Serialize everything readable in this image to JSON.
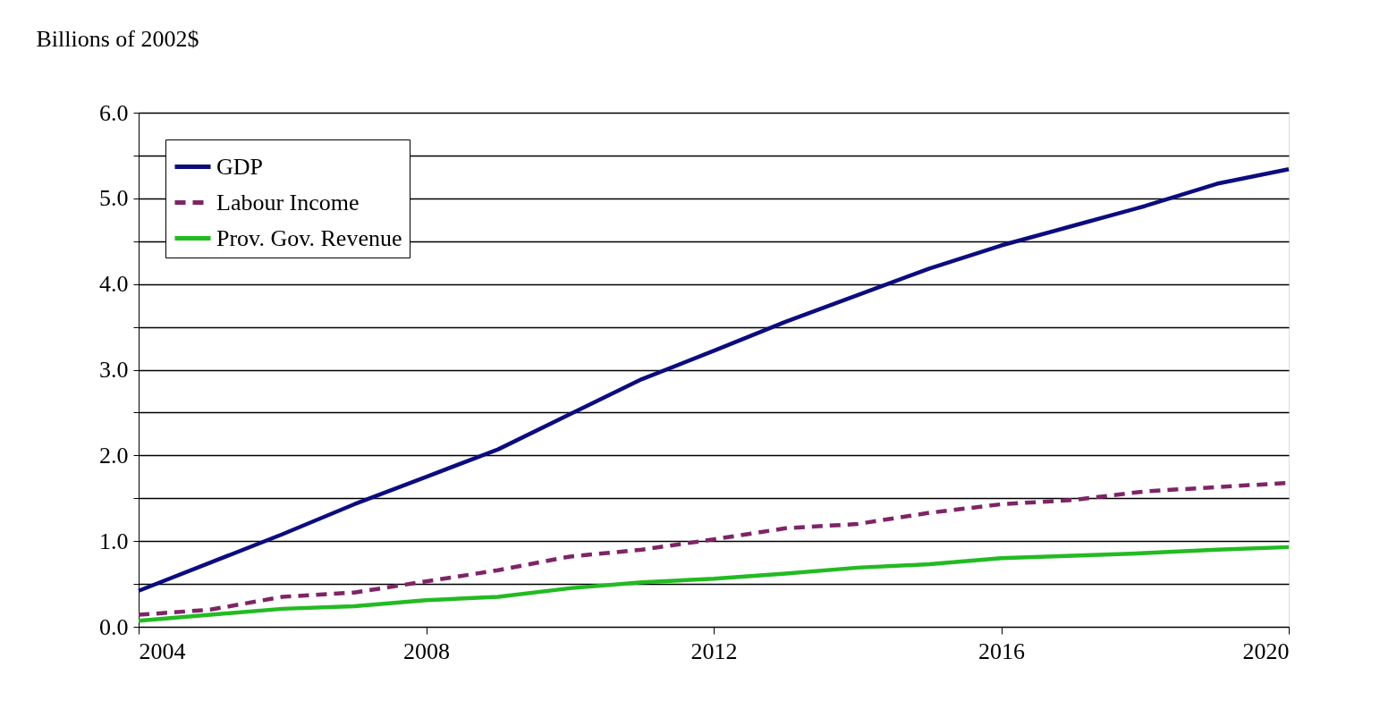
{
  "chart_data": {
    "type": "line",
    "ylabel": "Billions of 2002$",
    "x": [
      2004,
      2005,
      2006,
      2007,
      2008,
      2009,
      2010,
      2011,
      2012,
      2013,
      2014,
      2015,
      2016,
      2017,
      2018,
      2019,
      2020
    ],
    "series": [
      {
        "name": "GDP",
        "color": "#0c0c80",
        "line_style": "solid",
        "values": [
          0.42,
          0.75,
          1.08,
          1.43,
          1.75,
          2.07,
          2.48,
          2.89,
          3.22,
          3.56,
          3.87,
          4.18,
          4.45,
          4.68,
          4.91,
          5.17,
          5.34
        ]
      },
      {
        "name": "Labour Income",
        "color": "#7f2466",
        "line_style": "dashed",
        "values": [
          0.14,
          0.2,
          0.35,
          0.4,
          0.53,
          0.66,
          0.82,
          0.9,
          1.02,
          1.15,
          1.2,
          1.33,
          1.43,
          1.48,
          1.58,
          1.63,
          1.68
        ]
      },
      {
        "name": "Prov. Gov. Revenue",
        "color": "#22bb22",
        "line_style": "solid",
        "values": [
          0.07,
          0.14,
          0.21,
          0.24,
          0.31,
          0.35,
          0.45,
          0.52,
          0.56,
          0.62,
          0.69,
          0.73,
          0.8,
          0.83,
          0.86,
          0.9,
          0.93
        ]
      }
    ],
    "xlim": [
      2004,
      2020
    ],
    "xticks": [
      2004,
      2008,
      2012,
      2016,
      2020
    ],
    "ylim": [
      0,
      6
    ],
    "yticks": [
      {
        "value": 0,
        "label": "0.0"
      },
      {
        "value": 0.5,
        "label": null
      },
      {
        "value": 1,
        "label": "1.0"
      },
      {
        "value": 1.5,
        "label": null
      },
      {
        "value": 2,
        "label": "2.0"
      },
      {
        "value": 2.5,
        "label": null
      },
      {
        "value": 3,
        "label": "3.0"
      },
      {
        "value": 3.5,
        "label": null
      },
      {
        "value": 4,
        "label": "4.0"
      },
      {
        "value": 4.5,
        "label": null
      },
      {
        "value": 5,
        "label": "5.0"
      },
      {
        "value": 5.5,
        "label": null
      },
      {
        "value": 6,
        "label": "6.0"
      }
    ],
    "grid": "y",
    "legend": "top left",
    "marker": "none"
  }
}
